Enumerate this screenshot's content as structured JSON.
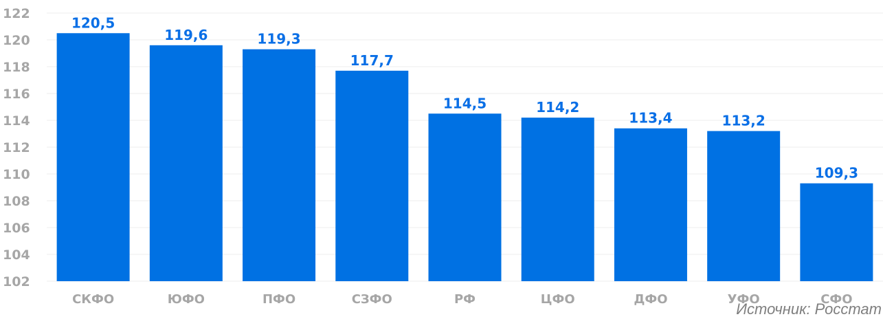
{
  "chart_data": {
    "type": "bar",
    "title": "",
    "xlabel": "",
    "ylabel": "",
    "categories": [
      "СКФО",
      "ЮФО",
      "ПФО",
      "СЗФО",
      "РФ",
      "ЦФО",
      "ДФО",
      "УФО",
      "СФО"
    ],
    "values": [
      120.5,
      119.6,
      119.3,
      117.7,
      114.5,
      114.2,
      113.4,
      113.2,
      109.3
    ],
    "value_labels": [
      "120,5",
      "119,6",
      "119,3",
      "117,7",
      "114,5",
      "114,2",
      "113,4",
      "113,2",
      "109,3"
    ],
    "ylim": [
      102,
      122
    ],
    "yticks": [
      "102",
      "104",
      "106",
      "108",
      "110",
      "112",
      "114",
      "116",
      "118",
      "120",
      "122"
    ],
    "grid": true,
    "bar_color": "#0071e3",
    "label_color": "#0a6fe6",
    "axis_text_color": "#a6a6a6"
  },
  "source": "Источник: Росстат"
}
